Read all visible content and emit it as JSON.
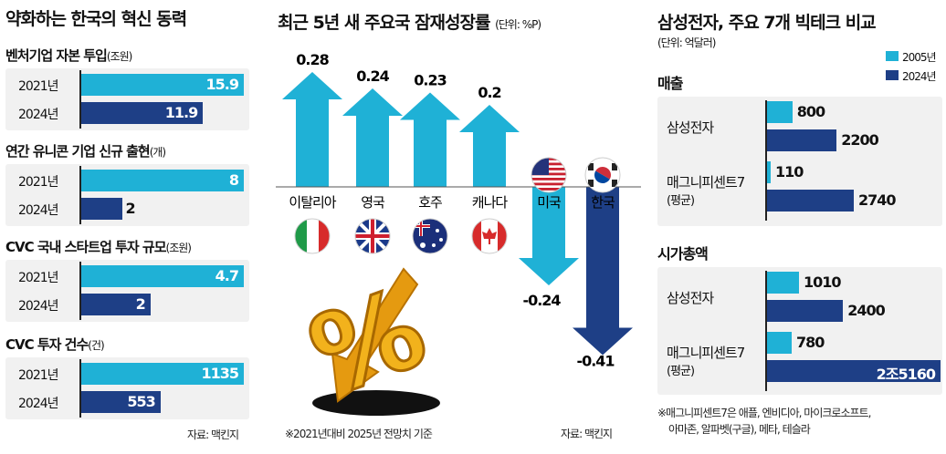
{
  "chart_data": [
    {
      "type": "bar",
      "title": "약화하는 한국의 혁신 동력",
      "source": "자료: 맥킨지",
      "panels": [
        {
          "title": "벤처기업 자본 투입",
          "unit": "(조원)",
          "categories": [
            "2021년",
            "2024년"
          ],
          "values": [
            15.9,
            11.9
          ],
          "labels": [
            "15.9",
            "11.9"
          ]
        },
        {
          "title": "연간 유니콘 기업 신규 출현",
          "unit": "(개)",
          "categories": [
            "2021년",
            "2024년"
          ],
          "values": [
            8,
            2
          ],
          "labels": [
            "8",
            "2"
          ]
        },
        {
          "title": "CVC 국내 스타트업 투자 규모",
          "unit": "(조원)",
          "categories": [
            "2021년",
            "2024년"
          ],
          "values": [
            4.7,
            2
          ],
          "labels": [
            "4.7",
            "2"
          ]
        },
        {
          "title": "CVC 투자 건수",
          "unit": "(건)",
          "categories": [
            "2021년",
            "2024년"
          ],
          "values": [
            1135,
            553
          ],
          "labels": [
            "1135",
            "553"
          ]
        }
      ]
    },
    {
      "type": "bar",
      "title": "최근 5년 새 주요국 잠재성장률",
      "unit": "(단위: %P)",
      "categories": [
        "이탈리아",
        "영국",
        "호주",
        "캐나다",
        "미국",
        "한국"
      ],
      "values": [
        0.28,
        0.24,
        0.23,
        0.2,
        -0.24,
        -0.41
      ],
      "labels": [
        "0.28",
        "0.24",
        "0.23",
        "0.2",
        "-0.24",
        "-0.41"
      ],
      "note": "※2021년대비 2025년 전망치 기준",
      "source": "자료: 맥킨지"
    },
    {
      "type": "bar",
      "title": "삼성전자, 주요 7개 빅테크 비교",
      "unit": "(단위: 억달러)",
      "legend": [
        "2005년",
        "2024년"
      ],
      "panels": [
        {
          "title": "매출",
          "groups": [
            {
              "name": "삼성전자",
              "sub": "",
              "values": [
                800,
                2200
              ],
              "labels": [
                "800",
                "2200"
              ]
            },
            {
              "name": "매그니피센트7",
              "sub": "(평균)",
              "values": [
                110,
                2740
              ],
              "labels": [
                "110",
                "2740"
              ]
            }
          ]
        },
        {
          "title": "시가총액",
          "groups": [
            {
              "name": "삼성전자",
              "sub": "",
              "values": [
                1010,
                2400
              ],
              "labels": [
                "1010",
                "2400"
              ]
            },
            {
              "name": "매그니피센트7",
              "sub": "(평균)",
              "values": [
                780,
                25160
              ],
              "labels": [
                "780",
                "2조5160"
              ]
            }
          ]
        }
      ],
      "note": [
        "※매그니피센트7은 애플, 엔비디아, 마이크로소프트,",
        "아마존, 알파벳(구글), 메타, 테슬라"
      ]
    }
  ],
  "colors": {
    "bar2021": "#1fb1d6",
    "bar2024": "#1e3f86",
    "panel_bg": "#f1f1f1",
    "percent": "#f2b21c",
    "percent_arrow": "#e59a10"
  },
  "icons": [
    "italy-flag-icon",
    "uk-flag-icon",
    "australia-flag-icon",
    "canada-flag-icon",
    "us-flag-icon",
    "korea-flag-icon",
    "percent-arrow-icon"
  ]
}
